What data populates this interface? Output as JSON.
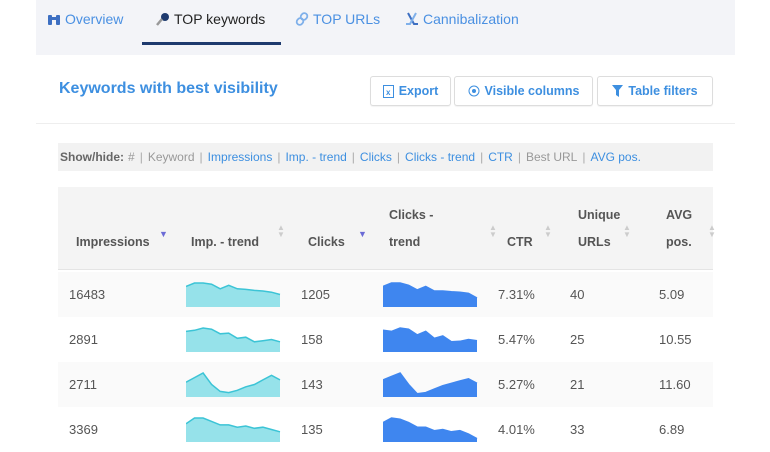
{
  "tabs": [
    {
      "label": "Overview",
      "icon": "binoculars-icon"
    },
    {
      "label": "TOP keywords",
      "icon": "key-icon",
      "active": true
    },
    {
      "label": "TOP URLs",
      "icon": "link-icon"
    },
    {
      "label": "Cannibalization",
      "icon": "hockey-sticks-icon"
    }
  ],
  "section": {
    "title": "Keywords with best visibility",
    "export": "Export",
    "visible_columns": "Visible columns",
    "table_filters": "Table filters"
  },
  "showhide": {
    "label": "Show/hide:",
    "items": [
      {
        "label": "#",
        "on": false
      },
      {
        "label": "Keyword",
        "on": false
      },
      {
        "label": "Impressions",
        "on": true
      },
      {
        "label": "Imp. - trend",
        "on": true
      },
      {
        "label": "Clicks",
        "on": true
      },
      {
        "label": "Clicks - trend",
        "on": true
      },
      {
        "label": "CTR",
        "on": true
      },
      {
        "label": "Best URL",
        "on": false
      },
      {
        "label": "AVG pos.",
        "on": true
      }
    ]
  },
  "columns": {
    "impressions": "Impressions",
    "imp_trend": "Imp. - trend",
    "clicks": "Clicks",
    "clicks_trend_1": "Clicks -",
    "clicks_trend_2": "trend",
    "ctr": "CTR",
    "unique_1": "Unique",
    "unique_2": "URLs",
    "avg_1": "AVG",
    "avg_2": "pos."
  },
  "colors": {
    "imp_trend": "#96e2ea",
    "imp_trend_line": "#3cc4d6",
    "clicks_trend": "#3f86ef",
    "accent": "#3d8fe0"
  },
  "rows": [
    {
      "impressions": "16483",
      "clicks": "1205",
      "ctr": "7.31%",
      "unique_urls": "40",
      "avg_pos": "5.09",
      "imp_trend": [
        0.85,
        1,
        1,
        0.95,
        0.75,
        0.9,
        0.75,
        0.72,
        0.68,
        0.65,
        0.6,
        0.5
      ],
      "clicks_trend": [
        0.85,
        1,
        1,
        0.9,
        0.7,
        0.85,
        0.65,
        0.65,
        0.62,
        0.6,
        0.55,
        0.35
      ]
    },
    {
      "impressions": "2891",
      "clicks": "158",
      "ctr": "5.47%",
      "unique_urls": "25",
      "avg_pos": "10.55",
      "imp_trend": [
        0.85,
        0.9,
        1,
        0.95,
        0.75,
        0.78,
        0.55,
        0.6,
        0.4,
        0.45,
        0.5,
        0.4
      ],
      "clicks_trend": [
        0.9,
        0.85,
        1,
        0.95,
        0.7,
        0.85,
        0.55,
        0.65,
        0.4,
        0.42,
        0.5,
        0.45
      ]
    },
    {
      "impressions": "2711",
      "clicks": "143",
      "ctr": "5.27%",
      "unique_urls": "21",
      "avg_pos": "11.60",
      "imp_trend": [
        0.6,
        0.8,
        1,
        0.5,
        0.2,
        0.15,
        0.25,
        0.4,
        0.5,
        0.7,
        0.9,
        0.7
      ],
      "clicks_trend": [
        0.7,
        0.85,
        1,
        0.5,
        0.1,
        0.15,
        0.3,
        0.45,
        0.55,
        0.65,
        0.75,
        0.55
      ]
    },
    {
      "impressions": "3369",
      "clicks": "135",
      "ctr": "4.01%",
      "unique_urls": "33",
      "avg_pos": "6.89",
      "imp_trend": [
        0.75,
        1,
        1,
        0.85,
        0.7,
        0.7,
        0.6,
        0.65,
        0.55,
        0.6,
        0.5,
        0.4
      ],
      "clicks_trend": [
        0.8,
        1,
        0.95,
        0.8,
        0.6,
        0.6,
        0.45,
        0.5,
        0.4,
        0.45,
        0.3,
        0.1
      ]
    }
  ]
}
